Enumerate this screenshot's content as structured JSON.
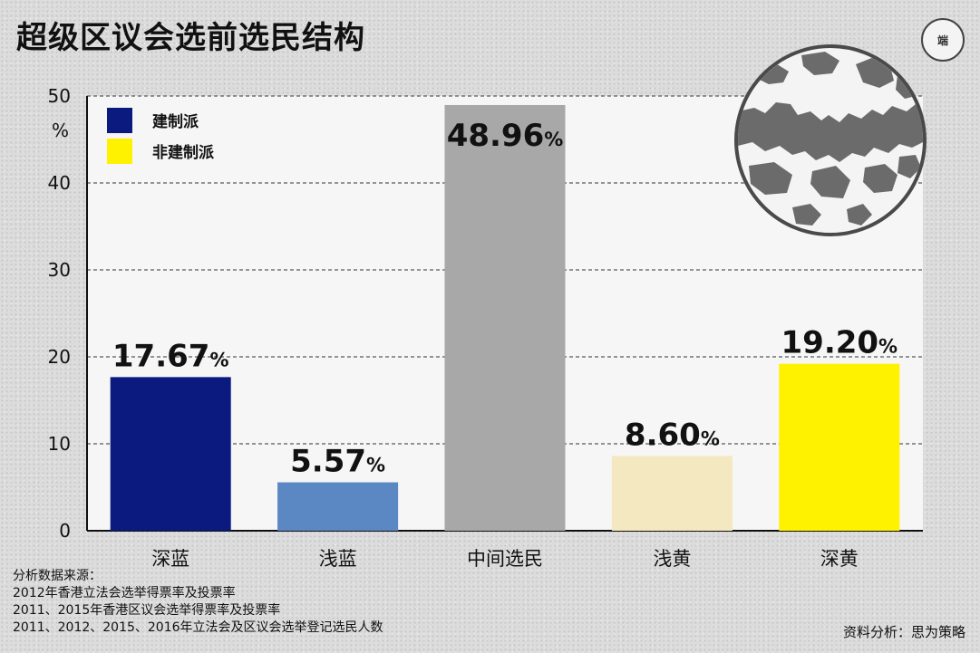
{
  "title": "超级区议会选前选民结构",
  "logo_text": "端",
  "legend": [
    {
      "label": "建制派",
      "color": "#0b1a7e"
    },
    {
      "label": "非建制派",
      "color": "#fff200"
    }
  ],
  "chart_data": {
    "type": "bar",
    "title": "超级区议会选前选民结构",
    "categories": [
      "深蓝",
      "浅蓝",
      "中间选民",
      "浅黄",
      "深黄"
    ],
    "values": [
      17.67,
      5.57,
      48.96,
      8.6,
      19.2
    ],
    "value_labels": [
      "17.67",
      "5.57",
      "48.96",
      "8.60",
      "19.20"
    ],
    "value_suffix": "%",
    "colors": [
      "#0b1a7e",
      "#5b87c3",
      "#a8a8a8",
      "#f3e8bf",
      "#fff200"
    ],
    "ylim": [
      0,
      50
    ],
    "yticks": [
      0,
      10,
      20,
      30,
      40,
      50
    ],
    "yunit": "%",
    "grid": true,
    "legend_position": "top-left"
  },
  "sources": {
    "heading": "分析数据来源：",
    "lines": [
      "2012年香港立法会选举得票率及投票率",
      "2011、2015年香港区议会选举得票率及投票率",
      "2011、2012、2015、2016年立法会及区议会选举登记选民人数"
    ]
  },
  "credit": "资料分析：思为策略"
}
